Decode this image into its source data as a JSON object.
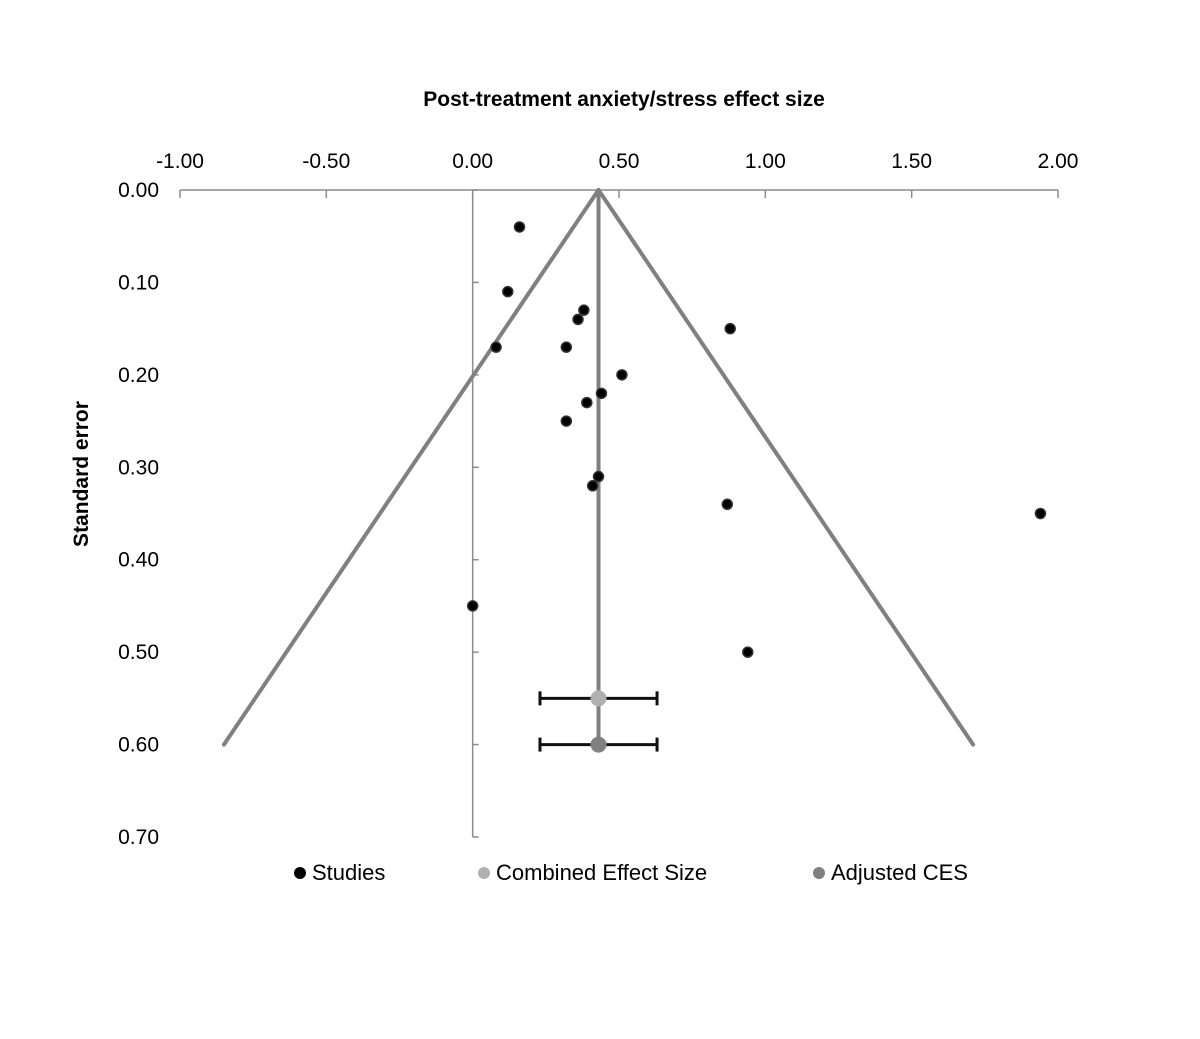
{
  "chart_data": {
    "type": "scatter",
    "title": "Post-treatment anxiety/stress effect size",
    "xlabel": "Post-treatment anxiety/stress effect size",
    "ylabel": "Standard error",
    "xlim": [
      -1.0,
      2.0
    ],
    "ylim": [
      0.0,
      0.7
    ],
    "y_reversed": true,
    "x_axis_position": "top",
    "x_ticks": [
      "-1.00",
      "-0.50",
      "0.00",
      "0.50",
      "1.00",
      "1.50",
      "2.00"
    ],
    "y_ticks": [
      "0.00",
      "0.10",
      "0.20",
      "0.30",
      "0.40",
      "0.50",
      "0.60",
      "0.70"
    ],
    "funnel": {
      "apex": {
        "x": 0.43,
        "y": 0.0
      },
      "left_end": {
        "x": -0.85,
        "y": 0.6
      },
      "right_end": {
        "x": 1.71,
        "y": 0.6
      }
    },
    "legend_position": "bottom",
    "series": [
      {
        "name": "Studies",
        "color": "#000000",
        "points": [
          {
            "x": 0.16,
            "y": 0.04
          },
          {
            "x": 0.12,
            "y": 0.11
          },
          {
            "x": 0.38,
            "y": 0.13
          },
          {
            "x": 0.36,
            "y": 0.14
          },
          {
            "x": 0.88,
            "y": 0.15
          },
          {
            "x": 0.08,
            "y": 0.17
          },
          {
            "x": 0.32,
            "y": 0.17
          },
          {
            "x": 0.51,
            "y": 0.2
          },
          {
            "x": 0.44,
            "y": 0.22
          },
          {
            "x": 0.39,
            "y": 0.23
          },
          {
            "x": 0.32,
            "y": 0.25
          },
          {
            "x": 0.43,
            "y": 0.31
          },
          {
            "x": 0.41,
            "y": 0.32
          },
          {
            "x": 0.87,
            "y": 0.34
          },
          {
            "x": 1.94,
            "y": 0.35
          },
          {
            "x": 0.0,
            "y": 0.45
          },
          {
            "x": 0.94,
            "y": 0.5
          }
        ]
      },
      {
        "name": "Combined Effect Size",
        "color": "#b0b0b0",
        "points": [
          {
            "x": 0.43,
            "y": 0.55,
            "ci": [
              0.23,
              0.63
            ]
          }
        ]
      },
      {
        "name": "Adjusted CES",
        "color": "#808080",
        "points": [
          {
            "x": 0.43,
            "y": 0.6,
            "ci": [
              0.23,
              0.63
            ]
          }
        ]
      }
    ]
  }
}
